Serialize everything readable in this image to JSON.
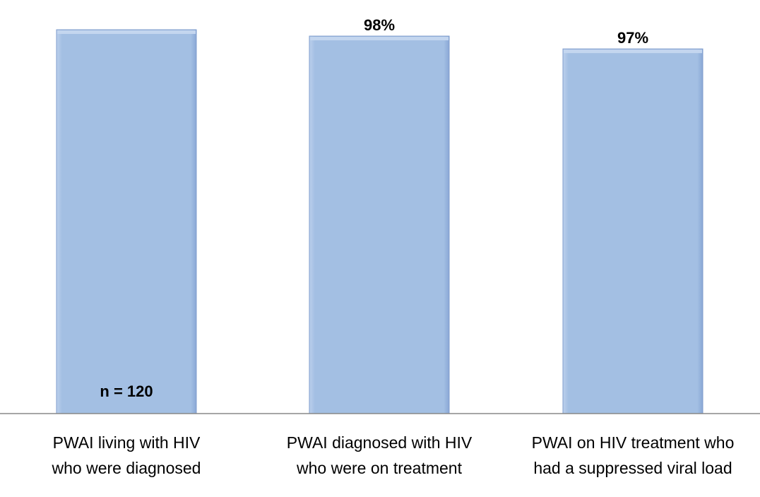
{
  "chart_data": {
    "type": "bar",
    "title": "",
    "xlabel": "",
    "ylabel": "",
    "categories": [
      [
        "PWAI living with HIV",
        "who were diagnosed"
      ],
      [
        "PWAI diagnosed with HIV",
        "who were on treatment"
      ],
      [
        "PWAI on HIV treatment who",
        "had a suppressed viral load"
      ]
    ],
    "values": [
      120,
      118,
      114
    ],
    "data_labels": [
      "",
      "98%",
      "97%"
    ],
    "annotation": "n = 120",
    "ylim": [
      0,
      120
    ],
    "grid": false,
    "legend": "none",
    "bar_color": "#a3bfe3",
    "bar_edge_color": "#7f9ccc"
  }
}
